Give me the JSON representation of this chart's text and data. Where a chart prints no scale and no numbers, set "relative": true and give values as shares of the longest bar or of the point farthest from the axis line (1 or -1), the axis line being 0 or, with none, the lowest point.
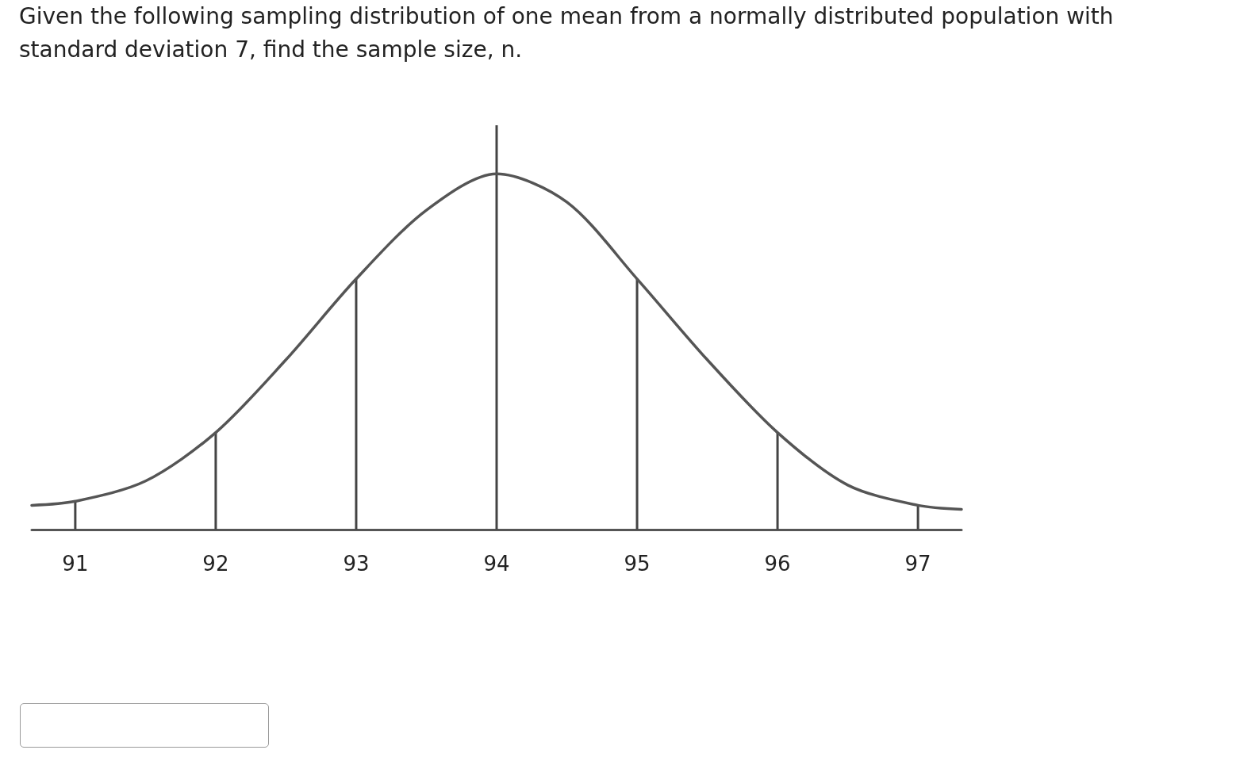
{
  "chart_data": {
    "type": "line",
    "title": "Given the following sampling distribution of one mean from a normally distributed population with standard deviation 7, find the sample size, n.",
    "relative": true,
    "x": [
      90.69,
      91,
      91.5,
      92,
      92.5,
      93,
      93.5,
      94,
      94.5,
      95,
      95.5,
      96,
      96.5,
      97,
      97.31
    ],
    "series": [
      {
        "color": "#555555",
        "values": [
          0.06,
          0.07,
          0.12,
          0.24,
          0.42,
          0.62,
          0.79,
          0.88,
          0.81,
          0.62,
          0.42,
          0.24,
          0.11,
          0.06,
          0.05
        ]
      },
      {
        "type": "bar",
        "color": "#444444",
        "x": [
          91,
          92,
          93,
          94,
          95,
          96,
          97
        ],
        "values": [
          0.07,
          0.24,
          0.62,
          1,
          0.62,
          0.24,
          0.06
        ]
      }
    ],
    "xlim": [
      90.69,
      97.31
    ],
    "xticks": [
      91,
      92,
      93,
      94,
      95,
      96,
      97
    ],
    "grid": false,
    "marker": "none",
    "line_style": "solid",
    "tick_labels": "x"
  }
}
